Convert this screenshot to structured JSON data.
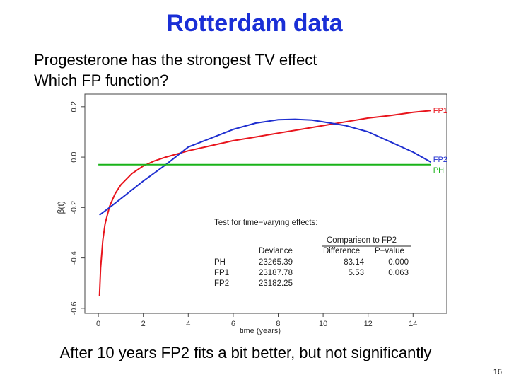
{
  "slide": {
    "title": "Rotterdam data",
    "subtitle_lines": [
      "Progesterone has the strongest TV effect",
      "Which FP function?"
    ],
    "footnote": "After 10 years FP2 fits a bit better, but not significantly",
    "page_number": "16",
    "title_color": "#1a2fd6"
  },
  "chart_data": {
    "type": "line",
    "xlabel": "time (years)",
    "ylabel": "β(t)",
    "xlim": [
      -0.6,
      15.5
    ],
    "ylim": [
      -0.62,
      0.25
    ],
    "x_ticks": [
      0,
      2,
      4,
      6,
      8,
      10,
      12,
      14
    ],
    "y_ticks": [
      -0.6,
      -0.4,
      -0.2,
      0.0,
      0.2
    ],
    "y_tick_labels": [
      "-0.6",
      "-0.4",
      "-0.2",
      "0.0",
      "0.2"
    ],
    "grid": false,
    "series": [
      {
        "name": "FP1",
        "color": "#e8141c",
        "x": [
          0.05,
          0.1,
          0.2,
          0.3,
          0.5,
          0.75,
          1,
          1.5,
          2,
          2.5,
          3,
          4,
          5,
          6,
          7,
          8,
          9,
          10,
          11,
          12,
          13,
          14,
          14.8
        ],
        "y": [
          -0.55,
          -0.44,
          -0.33,
          -0.265,
          -0.195,
          -0.145,
          -0.11,
          -0.065,
          -0.035,
          -0.015,
          0.0,
          0.025,
          0.045,
          0.065,
          0.08,
          0.095,
          0.11,
          0.125,
          0.14,
          0.155,
          0.165,
          0.178,
          0.185
        ]
      },
      {
        "name": "FP2",
        "color": "#1f2fd0",
        "x": [
          0.05,
          0.5,
          1,
          1.5,
          2,
          3,
          4,
          5,
          6,
          7,
          8,
          8.75,
          9.5,
          10,
          11,
          12,
          13,
          14,
          14.8
        ],
        "y": [
          -0.23,
          -0.2,
          -0.165,
          -0.13,
          -0.095,
          -0.03,
          0.04,
          0.075,
          0.11,
          0.135,
          0.148,
          0.15,
          0.147,
          0.14,
          0.125,
          0.1,
          0.06,
          0.02,
          -0.02
        ]
      },
      {
        "name": "PH",
        "color": "#19b319",
        "x": [
          0.0,
          14.8
        ],
        "y": [
          -0.03,
          -0.03
        ]
      }
    ],
    "annotation": {
      "heading": "Test for time−varying effects:",
      "subheading": "Comparison to FP2",
      "columns": [
        "Deviance",
        "Difference",
        "P−value"
      ],
      "rows": [
        {
          "model": "PH",
          "deviance": "23265.39",
          "difference": "83.14",
          "pvalue": "0.000"
        },
        {
          "model": "FP1",
          "deviance": "23187.78",
          "difference": "5.53",
          "pvalue": "0.063"
        },
        {
          "model": "FP2",
          "deviance": "23182.25",
          "difference": "",
          "pvalue": ""
        }
      ]
    }
  }
}
